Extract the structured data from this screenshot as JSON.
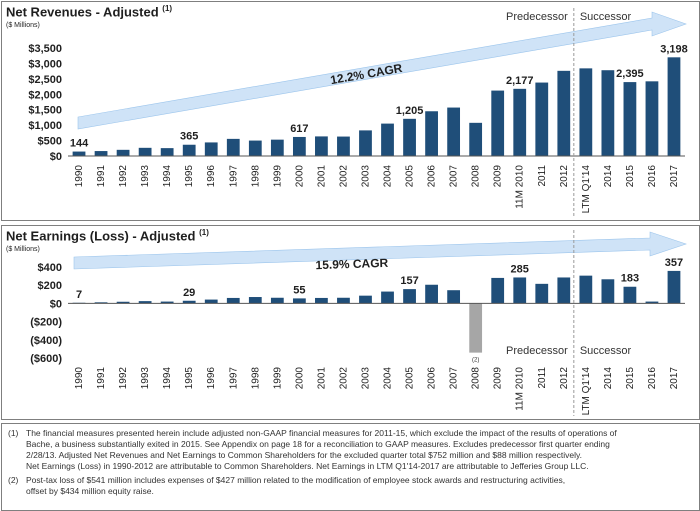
{
  "charts": {
    "revenues": {
      "title": "Net Revenues - Adjusted",
      "title_sup": "(1)",
      "unit": "($ Millions)",
      "cagr_label": "12.2% CAGR",
      "labels": {
        "predecessor": "Predecessor",
        "successor": "Successor"
      }
    },
    "earnings": {
      "title": "Net Earnings (Loss) - Adjusted",
      "title_sup": "(1)",
      "unit": "($ Millions)",
      "cagr_label": "15.9% CAGR",
      "labels": {
        "predecessor": "Predecessor",
        "successor": "Successor"
      },
      "footnote_marker": "(2)"
    }
  },
  "colors": {
    "bar": "#1f4e79",
    "loss_bar": "#a6a6a6",
    "arrow": "#cfe3f7",
    "arrow_edge": "#9cc5ec",
    "divider": "#9a9a9a"
  },
  "notes": [
    {
      "num": "(1)",
      "lines": [
        "The financial measures presented herein include adjusted non-GAAP financial measures for 2011-15, which exclude the impact of the results of operations of",
        "Bache, a business substantially exited in 2015.  See Appendix on page 18 for a reconciliation to GAAP measures.  Excludes predecessor first quarter ending",
        "2/28/13.  Adjusted Net Revenues and Net Earnings to Common Shareholders for the excluded quarter total $752 million and $88 million respectively.",
        "Net Earnings (Loss) in 1990-2012 are attributable to Common Shareholders. Net Earnings in LTM Q1'14-2017 are attributable to Jefferies Group LLC."
      ]
    },
    {
      "num": "(2)",
      "lines": [
        "Post-tax loss of $541 million includes expenses of $427 million related to the modification of employee stock awards and restructuring activities,",
        "offset by $434 million equity raise."
      ]
    }
  ],
  "chart_data": [
    {
      "type": "bar",
      "title": "Net Revenues - Adjusted",
      "ylabel": "($ Millions)",
      "ylim": [
        0,
        3500
      ],
      "yticks": [
        0,
        500,
        1000,
        1500,
        2000,
        2500,
        3000,
        3500
      ],
      "ytick_labels": [
        "$0",
        "$500",
        "$1,000",
        "$1,500",
        "$2,000",
        "$2,500",
        "$3,000",
        "$3,500"
      ],
      "categories": [
        "1990",
        "1991",
        "1992",
        "1993",
        "1994",
        "1995",
        "1996",
        "1997",
        "1998",
        "1999",
        "2000",
        "2001",
        "2002",
        "2003",
        "2004",
        "2005",
        "2006",
        "2007",
        "2008",
        "2009",
        "11M 2010",
        "2011",
        "2012",
        "LTM Q1'14",
        "2014",
        "2015",
        "2016",
        "2017"
      ],
      "values": [
        144,
        160,
        200,
        265,
        255,
        365,
        440,
        555,
        500,
        530,
        617,
        635,
        630,
        830,
        1050,
        1205,
        1450,
        1570,
        1075,
        2120,
        2177,
        2380,
        2760,
        2840,
        2780,
        2395,
        2420,
        3198
      ],
      "data_labels": [
        {
          "index": 0,
          "text": "144"
        },
        {
          "index": 5,
          "text": "365"
        },
        {
          "index": 10,
          "text": "617"
        },
        {
          "index": 15,
          "text": "1,205"
        },
        {
          "index": 20,
          "text": "2,177"
        },
        {
          "index": 25,
          "text": "2,395"
        },
        {
          "index": 27,
          "text": "3,198"
        }
      ],
      "grid": false,
      "annotation": "12.2% CAGR"
    },
    {
      "type": "bar",
      "title": "Net Earnings (Loss) - Adjusted",
      "ylabel": "($ Millions)",
      "ylim": [
        -600,
        400
      ],
      "yticks": [
        -600,
        -400,
        -200,
        0,
        200,
        400
      ],
      "ytick_labels": [
        "($600)",
        "($400)",
        "($200)",
        "$0",
        "$200",
        "$400"
      ],
      "categories": [
        "1990",
        "1991",
        "1992",
        "1993",
        "1994",
        "1995",
        "1996",
        "1997",
        "1998",
        "1999",
        "2000",
        "2001",
        "2002",
        "2003",
        "2004",
        "2005",
        "2006",
        "2007",
        "2008",
        "2009",
        "11M 2010",
        "2011",
        "2012",
        "LTM Q1'14",
        "2014",
        "2015",
        "2016",
        "2017"
      ],
      "values": [
        7,
        12,
        18,
        25,
        20,
        29,
        42,
        60,
        70,
        62,
        55,
        60,
        62,
        85,
        130,
        157,
        205,
        145,
        -541,
        280,
        285,
        215,
        285,
        305,
        265,
        183,
        20,
        357
      ],
      "data_labels": [
        {
          "index": 0,
          "text": "7"
        },
        {
          "index": 5,
          "text": "29"
        },
        {
          "index": 10,
          "text": "55"
        },
        {
          "index": 15,
          "text": "157"
        },
        {
          "index": 20,
          "text": "285"
        },
        {
          "index": 25,
          "text": "183"
        },
        {
          "index": 27,
          "text": "357"
        }
      ],
      "grid": false,
      "annotation": "15.9% CAGR"
    }
  ]
}
